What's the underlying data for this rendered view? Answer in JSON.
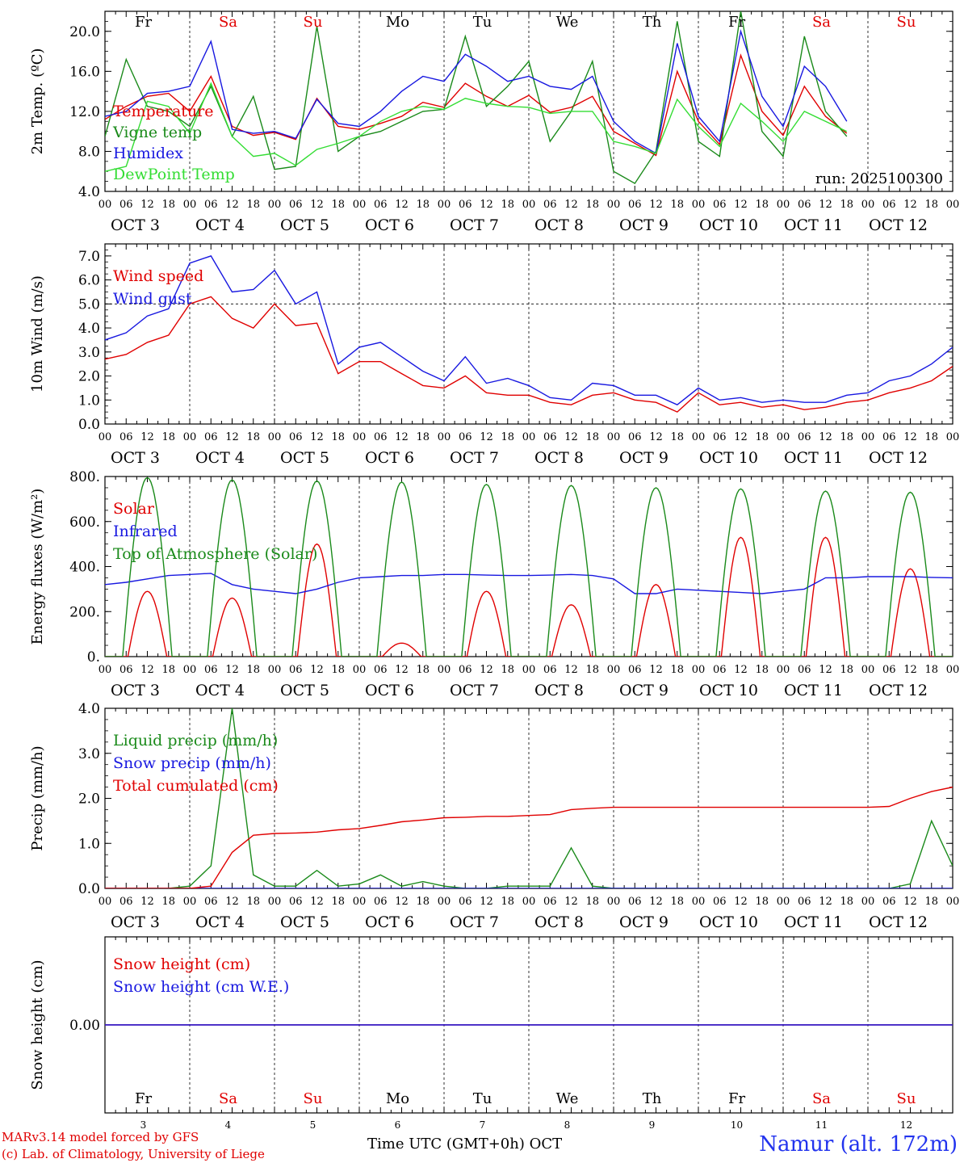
{
  "days": [
    {
      "short": "Fr",
      "weekend": false,
      "num": "3",
      "label": "OCT  3"
    },
    {
      "short": "Sa",
      "weekend": true,
      "num": "4",
      "label": "OCT  4"
    },
    {
      "short": "Su",
      "weekend": true,
      "num": "5",
      "label": "OCT  5"
    },
    {
      "short": "Mo",
      "weekend": false,
      "num": "6",
      "label": "OCT  6"
    },
    {
      "short": "Tu",
      "weekend": false,
      "num": "7",
      "label": "OCT  7"
    },
    {
      "short": "We",
      "weekend": false,
      "num": "8",
      "label": "OCT  8"
    },
    {
      "short": "Th",
      "weekend": false,
      "num": "9",
      "label": "OCT  9"
    },
    {
      "short": "Fr",
      "weekend": false,
      "num": "10",
      "label": "OCT 10"
    },
    {
      "short": "Sa",
      "weekend": true,
      "num": "11",
      "label": "OCT 11"
    },
    {
      "short": "Su",
      "weekend": true,
      "num": "12",
      "label": "OCT 12"
    }
  ],
  "hour_ticks": [
    "00",
    "06",
    "12",
    "18"
  ],
  "colors": {
    "red": "#e00000",
    "green": "#1a8a1a",
    "blue": "#1818e0",
    "light_green": "#33dd33",
    "axis": "#000000"
  },
  "chart_data": [
    {
      "type": "line",
      "id": "temp",
      "ylabel": "2m Temp. (ºC)",
      "ylim": [
        4.0,
        22.0
      ],
      "yticks": [
        "4.0",
        "8.0",
        "12.0",
        "16.0",
        "20.0"
      ],
      "yticks_values": [
        4,
        8,
        12,
        16,
        20
      ],
      "annotation": "run: 2025100300",
      "x_hours": [
        0,
        6,
        12,
        18,
        24,
        30,
        36,
        42,
        48,
        54,
        60,
        66,
        72,
        78,
        84,
        90,
        96,
        102,
        108,
        114,
        120,
        126,
        132,
        138,
        144,
        150,
        156,
        162,
        168,
        174,
        180,
        186,
        192,
        198,
        204,
        210,
        216,
        222,
        228,
        234,
        240
      ],
      "series": [
        {
          "name": "Temperature",
          "color": "red",
          "values": [
            11.2,
            12.5,
            13.5,
            13.8,
            12.0,
            15.5,
            10.5,
            9.6,
            9.9,
            9.2,
            13.3,
            10.5,
            10.2,
            10.8,
            11.5,
            12.9,
            12.4,
            14.8,
            13.5,
            12.5,
            13.6,
            11.9,
            12.4,
            13.5,
            10.0,
            8.8,
            7.6,
            16.0,
            11.0,
            8.7,
            17.6,
            12.0,
            9.6,
            14.5,
            11.5,
            9.8,
            null,
            null,
            null,
            null,
            null
          ]
        },
        {
          "name": "Vigne temp",
          "color": "green",
          "values": [
            9.5,
            17.2,
            12.5,
            12.0,
            10.5,
            14.5,
            9.5,
            13.5,
            6.2,
            6.5,
            20.5,
            8.0,
            9.5,
            10.0,
            11.0,
            12.0,
            12.2,
            19.5,
            12.5,
            14.5,
            17.0,
            9.0,
            12.0,
            17.0,
            6.0,
            4.8,
            8.0,
            21.0,
            9.0,
            7.5,
            22.0,
            10.0,
            7.5,
            19.5,
            12.0,
            9.5,
            null,
            null,
            null,
            null,
            null
          ]
        },
        {
          "name": "Humidex",
          "color": "blue",
          "values": [
            11.5,
            12.0,
            13.8,
            14.0,
            14.5,
            19.0,
            10.2,
            9.8,
            10.0,
            9.3,
            13.2,
            10.8,
            10.5,
            12.0,
            14.0,
            15.5,
            15.0,
            17.7,
            16.5,
            15.0,
            15.5,
            14.5,
            14.2,
            15.5,
            11.0,
            9.0,
            7.8,
            18.8,
            11.5,
            9.0,
            20.0,
            13.5,
            10.5,
            16.5,
            14.5,
            11.0,
            null,
            null,
            null,
            null,
            null
          ]
        },
        {
          "name": "DewPoint Temp",
          "color": "light_green",
          "values": [
            6.0,
            6.5,
            13.0,
            12.5,
            9.8,
            14.8,
            9.5,
            7.5,
            7.8,
            6.6,
            8.2,
            8.8,
            9.5,
            11.0,
            12.0,
            12.5,
            12.2,
            13.3,
            12.8,
            12.5,
            12.4,
            11.8,
            12.0,
            12.0,
            9.0,
            8.5,
            7.8,
            13.2,
            10.5,
            8.5,
            12.8,
            11.0,
            9.0,
            12.0,
            11.0,
            10.0,
            null,
            null,
            null,
            null,
            null
          ]
        }
      ]
    },
    {
      "type": "line",
      "id": "wind",
      "ylabel": "10m Wind (m/s)",
      "ylim": [
        0.0,
        7.5
      ],
      "yticks": [
        "0.0",
        "1.0",
        "2.0",
        "3.0",
        "4.0",
        "5.0",
        "6.0",
        "7.0"
      ],
      "yticks_values": [
        0,
        1,
        2,
        3,
        4,
        5,
        6,
        7
      ],
      "reference_line": 5.0,
      "x_hours": [
        0,
        6,
        12,
        18,
        24,
        30,
        36,
        42,
        48,
        54,
        60,
        66,
        72,
        78,
        84,
        90,
        96,
        102,
        108,
        114,
        120,
        126,
        132,
        138,
        144,
        150,
        156,
        162,
        168,
        174,
        180,
        186,
        192,
        198,
        204,
        210,
        216,
        222,
        228,
        234,
        240
      ],
      "series": [
        {
          "name": "Wind speed",
          "color": "red",
          "values": [
            2.7,
            2.9,
            3.4,
            3.7,
            5.0,
            5.3,
            4.4,
            4.0,
            5.0,
            4.1,
            4.2,
            2.1,
            2.6,
            2.6,
            2.1,
            1.6,
            1.5,
            2.0,
            1.3,
            1.2,
            1.2,
            0.9,
            0.8,
            1.2,
            1.3,
            1.0,
            0.9,
            0.5,
            1.3,
            0.8,
            0.9,
            0.7,
            0.8,
            0.6,
            0.7,
            0.9,
            1.0,
            1.3,
            1.5,
            1.8,
            2.4
          ]
        },
        {
          "name": "Wind gust",
          "color": "blue",
          "values": [
            3.5,
            3.8,
            4.5,
            4.8,
            6.7,
            7.0,
            5.5,
            5.6,
            6.4,
            5.0,
            5.5,
            2.5,
            3.2,
            3.4,
            2.8,
            2.2,
            1.8,
            2.8,
            1.7,
            1.9,
            1.6,
            1.1,
            1.0,
            1.7,
            1.6,
            1.2,
            1.2,
            0.8,
            1.5,
            1.0,
            1.1,
            0.9,
            1.0,
            0.9,
            0.9,
            1.2,
            1.3,
            1.8,
            2.0,
            2.5,
            3.2
          ]
        }
      ]
    },
    {
      "type": "line",
      "id": "flux",
      "ylabel": "Energy fluxes (W/m²)",
      "ylim": [
        0,
        800
      ],
      "yticks": [
        "0.",
        "200.",
        "400.",
        "600.",
        "800."
      ],
      "yticks_values": [
        0,
        200,
        400,
        600,
        800
      ],
      "solar_peaks": [
        290,
        260,
        500,
        60,
        290,
        230,
        320,
        530,
        530,
        390
      ],
      "toa_peaks": [
        795,
        785,
        780,
        775,
        765,
        760,
        750,
        745,
        735,
        730
      ],
      "x_hours": [
        0,
        6,
        12,
        18,
        24,
        30,
        36,
        42,
        48,
        54,
        60,
        66,
        72,
        78,
        84,
        90,
        96,
        102,
        108,
        114,
        120,
        126,
        132,
        138,
        144,
        150,
        156,
        162,
        168,
        174,
        180,
        186,
        192,
        198,
        204,
        210,
        216,
        222,
        228,
        234,
        240
      ],
      "series": [
        {
          "name": "Solar",
          "color": "red",
          "note": "daily solar curve, peak values in solar_peaks (W/m2) per day"
        },
        {
          "name": "Infrared",
          "color": "blue",
          "values": [
            320,
            330,
            345,
            360,
            365,
            370,
            320,
            300,
            290,
            280,
            300,
            330,
            350,
            355,
            360,
            360,
            365,
            365,
            362,
            360,
            360,
            362,
            365,
            360,
            345,
            280,
            280,
            300,
            295,
            290,
            285,
            280,
            290,
            300,
            350,
            350,
            355,
            355,
            355,
            352,
            350
          ]
        },
        {
          "name": "Top of Atmosphere (Solar)",
          "color": "green",
          "note": "daily top-of-atmosphere solar curve, peak values in toa_peaks (W/m2) per day"
        }
      ]
    },
    {
      "type": "line",
      "id": "precip",
      "ylabel": "Precip (mm/h)",
      "ylim": [
        0.0,
        4.0
      ],
      "yticks": [
        "0.0",
        "1.0",
        "2.0",
        "3.0",
        "4.0"
      ],
      "yticks_values": [
        0,
        1,
        2,
        3,
        4
      ],
      "x_hours": [
        0,
        6,
        12,
        18,
        24,
        30,
        36,
        42,
        48,
        54,
        60,
        66,
        72,
        78,
        84,
        90,
        96,
        102,
        108,
        114,
        120,
        126,
        132,
        138,
        144,
        150,
        156,
        162,
        168,
        174,
        180,
        186,
        192,
        198,
        204,
        210,
        216,
        222,
        228,
        234,
        240
      ],
      "series": [
        {
          "name": "Liquid precip (mm/h)",
          "color": "green",
          "values": [
            0,
            0,
            0,
            0,
            0.05,
            0.5,
            4.0,
            0.3,
            0.05,
            0.05,
            0.4,
            0.05,
            0.1,
            0.3,
            0.05,
            0.15,
            0.05,
            0,
            0,
            0.05,
            0.05,
            0.05,
            0.9,
            0.05,
            0,
            0,
            0,
            0,
            0,
            0,
            0,
            0,
            0,
            0,
            0,
            0,
            0,
            0,
            0.1,
            1.5,
            0.5
          ]
        },
        {
          "name": "Snow precip (mm/h)",
          "color": "blue",
          "values": [
            0,
            0,
            0,
            0,
            0,
            0,
            0,
            0,
            0,
            0,
            0,
            0,
            0,
            0,
            0,
            0,
            0,
            0,
            0,
            0,
            0,
            0,
            0,
            0,
            0,
            0,
            0,
            0,
            0,
            0,
            0,
            0,
            0,
            0,
            0,
            0,
            0,
            0,
            0,
            0,
            0
          ]
        },
        {
          "name": "Total cumulated (cm)",
          "color": "red",
          "values": [
            0,
            0,
            0,
            0,
            0,
            0.05,
            0.8,
            1.18,
            1.22,
            1.23,
            1.25,
            1.3,
            1.33,
            1.4,
            1.48,
            1.52,
            1.57,
            1.58,
            1.6,
            1.6,
            1.62,
            1.64,
            1.75,
            1.78,
            1.8,
            1.8,
            1.8,
            1.8,
            1.8,
            1.8,
            1.8,
            1.8,
            1.8,
            1.8,
            1.8,
            1.8,
            1.8,
            1.82,
            2.0,
            2.15,
            2.25
          ]
        }
      ]
    },
    {
      "type": "line",
      "id": "snow",
      "ylabel": "Snow height (cm)",
      "ylim": [
        -1.0,
        1.0
      ],
      "yticks": [
        "0.00"
      ],
      "yticks_values": [
        0
      ],
      "x_hours": [
        0,
        240
      ],
      "series": [
        {
          "name": "Snow height (cm)",
          "color": "red",
          "values": [
            0.0,
            0.0
          ]
        },
        {
          "name": "Snow height (cm W.E.)",
          "color": "blue",
          "values": [
            0.0,
            0.0
          ]
        }
      ]
    }
  ],
  "footer": {
    "credit_line1": "MARv3.14 model forced by GFS",
    "credit_line2": "(c) Lab. of Climatology, University of Liege",
    "xaxis_title": "Time UTC (GMT+0h) OCT",
    "station": "Namur (alt. 172m)"
  }
}
